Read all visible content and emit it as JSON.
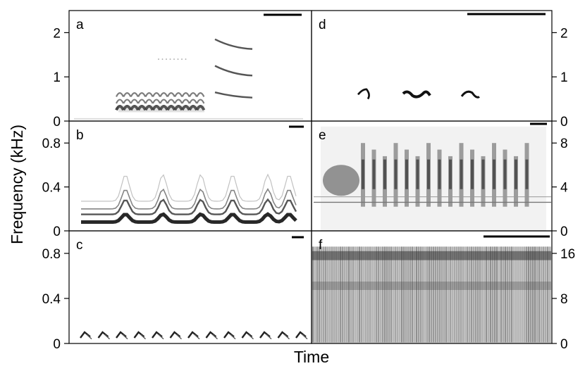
{
  "figure": {
    "ylabel": "Frequency (kHz)",
    "xlabel": "Time"
  },
  "chart_data": [
    {
      "type": "heatmap",
      "panel": "a",
      "ylabel": "Frequency (kHz)",
      "ylim": [
        0,
        2.5
      ],
      "yticks": [
        0,
        1,
        2
      ],
      "axis_side": "left",
      "scale_bar": true
    },
    {
      "type": "heatmap",
      "panel": "b",
      "ylabel": "Frequency (kHz)",
      "ylim": [
        0,
        1.0
      ],
      "yticks": [
        0,
        0.4,
        0.8
      ],
      "axis_side": "left",
      "scale_bar": true
    },
    {
      "type": "heatmap",
      "panel": "c",
      "ylabel": "Frequency (kHz)",
      "ylim": [
        0,
        1.0
      ],
      "yticks": [
        0,
        0.4,
        0.8
      ],
      "axis_side": "left",
      "scale_bar": true
    },
    {
      "type": "heatmap",
      "panel": "d",
      "ylabel": "Frequency (kHz)",
      "ylim": [
        0,
        2.5
      ],
      "yticks": [
        0,
        1,
        2
      ],
      "axis_side": "right",
      "scale_bar": true
    },
    {
      "type": "heatmap",
      "panel": "e",
      "ylabel": "Frequency (kHz)",
      "ylim": [
        0,
        10
      ],
      "yticks": [
        0,
        4,
        8
      ],
      "axis_side": "right",
      "scale_bar": true
    },
    {
      "type": "heatmap",
      "panel": "f",
      "ylabel": "Frequency (kHz)",
      "ylim": [
        0,
        20
      ],
      "yticks": [
        0,
        8,
        16
      ],
      "axis_side": "right",
      "scale_bar": true
    }
  ]
}
